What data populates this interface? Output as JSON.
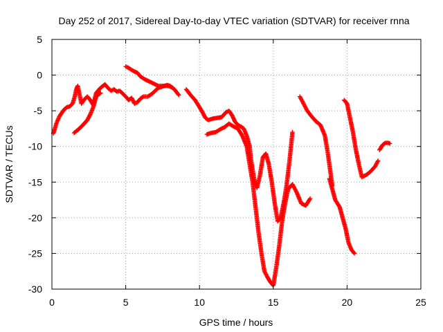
{
  "chart_data": {
    "type": "scatter",
    "title": "Day 252 of 2017, Sidereal Day-to-day VTEC variation (SDTVAR) for receiver rnna",
    "xlabel": "GPS time / hours",
    "ylabel": "SDTVAR / TECUs",
    "xlim": [
      0,
      25
    ],
    "ylim": [
      -30,
      5
    ],
    "xticks": [
      0,
      5,
      10,
      15,
      20,
      25
    ],
    "yticks": [
      -30,
      -25,
      -20,
      -15,
      -10,
      -5,
      0,
      5
    ],
    "xtick_labels": [
      "0",
      "5",
      "10",
      "15",
      "20",
      "25"
    ],
    "ytick_labels": [
      "-30",
      "-25",
      "-20",
      "-15",
      "-10",
      "-5",
      "0",
      "5"
    ],
    "grid": true,
    "marker": "+",
    "color": "#ff0000",
    "series": [
      {
        "x": [
          0.1,
          0.3,
          0.5,
          0.8,
          1.0,
          1.2,
          1.4,
          1.55,
          1.65,
          1.75,
          1.85,
          2.0,
          2.2,
          2.4,
          2.6,
          2.8,
          3.0,
          3.2,
          3.4,
          3.6,
          3.8,
          4.0,
          4.2,
          4.4,
          4.6,
          4.8,
          5.0,
          5.2,
          5.4,
          5.6,
          5.8,
          6.0,
          6.2,
          6.5,
          6.8,
          7.0,
          7.2,
          7.5,
          7.8,
          8.0,
          8.3,
          8.6
        ],
        "y": [
          -8.2,
          -6.8,
          -5.8,
          -4.9,
          -4.5,
          -4.4,
          -4.0,
          -3.0,
          -2.0,
          -1.5,
          -2.5,
          -4.0,
          -3.4,
          -3.0,
          -3.5,
          -4.2,
          -2.5,
          -2.0,
          -1.6,
          -1.3,
          -1.8,
          -2.2,
          -2.0,
          -2.3,
          -2.2,
          -2.6,
          -3.0,
          -3.5,
          -3.2,
          -4.0,
          -3.8,
          -3.3,
          -3.0,
          -3.0,
          -2.6,
          -2.2,
          -1.8,
          -1.6,
          -1.4,
          -1.5,
          -2.0,
          -2.8
        ]
      },
      {
        "x": [
          1.5,
          1.8,
          2.1,
          2.4,
          2.6,
          2.8,
          3.0,
          3.3
        ],
        "y": [
          -8.1,
          -7.6,
          -7.0,
          -6.3,
          -5.5,
          -4.5,
          -3.0,
          -2.5
        ]
      },
      {
        "x": [
          5.0,
          5.2,
          5.5,
          5.8,
          6.0,
          6.3,
          6.6,
          6.9,
          7.2,
          7.5,
          7.8,
          8.0,
          8.2
        ],
        "y": [
          1.2,
          1.0,
          0.6,
          0.3,
          -0.2,
          -0.6,
          -0.9,
          -1.2,
          -1.5,
          -1.5,
          -1.5,
          -1.6,
          -1.8
        ]
      },
      {
        "x": [
          9.1,
          9.4,
          9.7,
          10.0,
          10.2,
          10.4,
          10.6,
          10.9,
          11.2,
          11.5,
          11.8,
          12.0,
          12.2,
          12.4,
          12.6,
          12.8,
          13.0,
          13.2,
          13.4,
          13.5,
          13.7,
          13.9,
          14.1,
          14.3,
          14.5,
          14.7,
          14.9,
          15.1,
          15.3,
          15.5,
          15.7,
          15.9,
          16.1,
          16.3
        ],
        "y": [
          -2.0,
          -2.8,
          -3.5,
          -4.5,
          -5.2,
          -6.0,
          -6.3,
          -6.1,
          -6.0,
          -5.9,
          -5.2,
          -5.0,
          -5.6,
          -6.5,
          -7.0,
          -7.2,
          -7.5,
          -8.5,
          -10.0,
          -12.0,
          -14.5,
          -15.8,
          -14.0,
          -11.5,
          -11.0,
          -12.5,
          -15.0,
          -18.0,
          -20.5,
          -20.0,
          -18.0,
          -15.5,
          -12.0,
          -8.0
        ]
      },
      {
        "x": [
          10.5,
          10.8,
          11.1,
          11.4,
          11.7,
          12.0,
          12.3,
          12.6,
          12.9,
          13.2,
          13.4,
          13.6,
          13.8,
          14.0,
          14.2,
          14.4,
          14.6,
          14.8,
          15.0,
          15.2,
          15.4,
          15.6,
          15.8,
          16.0,
          16.3,
          16.6,
          16.9,
          17.2,
          17.5
        ],
        "y": [
          -8.3,
          -8.1,
          -8.0,
          -7.6,
          -7.3,
          -6.8,
          -7.2,
          -7.5,
          -8.5,
          -10.0,
          -12.5,
          -15.0,
          -18.5,
          -22.0,
          -25.0,
          -27.5,
          -28.3,
          -29.0,
          -29.5,
          -27.0,
          -24.0,
          -20.5,
          -18.0,
          -16.0,
          -15.3,
          -16.5,
          -18.0,
          -18.3,
          -17.3
        ]
      },
      {
        "x": [
          16.8,
          17.0,
          17.3,
          17.6,
          17.9,
          18.2,
          18.5,
          18.7,
          18.9,
          19.0
        ],
        "y": [
          -3.0,
          -3.8,
          -5.0,
          -5.8,
          -6.5,
          -7.0,
          -8.5,
          -11.0,
          -14.0,
          -15.5
        ]
      },
      {
        "x": [
          18.8,
          19.0,
          19.2,
          19.5,
          19.7,
          19.9,
          20.1,
          20.3,
          20.5
        ],
        "y": [
          -14.5,
          -16.0,
          -17.5,
          -18.5,
          -20.0,
          -21.5,
          -23.5,
          -24.5,
          -25.0
        ]
      },
      {
        "x": [
          19.8,
          20.0,
          20.2,
          20.4,
          20.6,
          20.8,
          21.0,
          21.3,
          21.6,
          21.9,
          22.1
        ],
        "y": [
          -3.5,
          -4.0,
          -6.0,
          -8.0,
          -10.5,
          -12.5,
          -14.3,
          -14.0,
          -13.5,
          -12.8,
          -12.0
        ]
      },
      {
        "x": [
          22.2,
          22.4,
          22.6,
          22.8,
          22.9
        ],
        "y": [
          -10.5,
          -9.8,
          -9.5,
          -9.5,
          -9.6
        ]
      }
    ]
  }
}
